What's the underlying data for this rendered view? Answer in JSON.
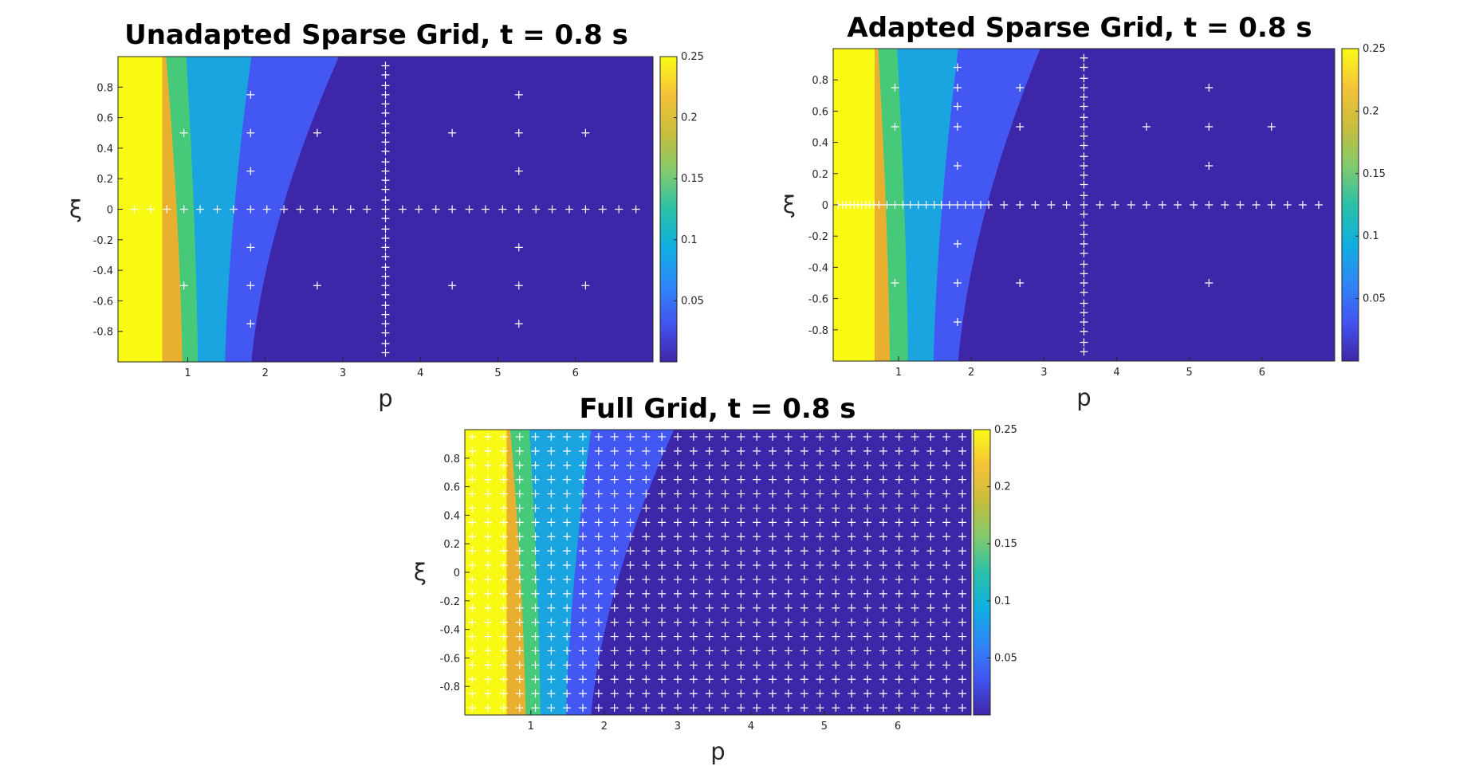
{
  "colors": {
    "contour_levels": [
      "#3e26a8",
      "#4358f2",
      "#1aa5e0",
      "#47c97a",
      "#e9b02f",
      "#f9fa14"
    ],
    "colorbar_stops": [
      "#3e26a8",
      "#4354f0",
      "#2e87f7",
      "#0fafe0",
      "#2ac0a8",
      "#82ca6c",
      "#c8bd3b",
      "#f6c23a",
      "#f9fb15"
    ],
    "marker": "#ffffff"
  },
  "chart_data": [
    {
      "type": "heatmap",
      "title": "Unadapted Sparse Grid, t = 0.8 s",
      "xlabel": "p",
      "ylabel": "ξ",
      "xlim": [
        0.1,
        7.0
      ],
      "ylim": [
        -1,
        1
      ],
      "xticks": [
        1,
        2,
        3,
        4,
        5,
        6
      ],
      "yticks": [
        -0.8,
        -0.6,
        -0.4,
        -0.2,
        0,
        0.2,
        0.4,
        0.6,
        0.8
      ],
      "colorbar": {
        "range": [
          0,
          0.25
        ],
        "ticks": [
          0.05,
          0.1,
          0.15,
          0.2,
          0.25
        ]
      },
      "contour_boundaries": [
        {
          "level": 0.25,
          "p": [
            0.42,
            0.42
          ]
        },
        {
          "level": 0.2,
          "p": [
            0.67,
            0.67
          ]
        },
        {
          "level": 0.15,
          "p": [
            0.93,
            0.72
          ]
        },
        {
          "level": 0.1,
          "p": [
            1.13,
            0.98
          ]
        },
        {
          "level": 0.05,
          "p": [
            1.48,
            1.82
          ]
        },
        {
          "level": 0.02,
          "p": [
            1.82,
            2.95
          ]
        }
      ],
      "grid_points": [
        [
          0.31,
          0
        ],
        [
          0.52,
          0
        ],
        [
          0.73,
          0
        ],
        [
          0.95,
          0
        ],
        [
          1.16,
          0
        ],
        [
          1.38,
          0
        ],
        [
          1.59,
          0
        ],
        [
          1.81,
          0
        ],
        [
          2.02,
          0
        ],
        [
          2.24,
          0
        ],
        [
          2.45,
          0
        ],
        [
          2.67,
          0
        ],
        [
          2.88,
          0
        ],
        [
          3.1,
          0
        ],
        [
          3.31,
          0
        ],
        [
          3.77,
          0
        ],
        [
          3.98,
          0
        ],
        [
          4.2,
          0
        ],
        [
          4.41,
          0
        ],
        [
          4.63,
          0
        ],
        [
          4.84,
          0
        ],
        [
          5.06,
          0
        ],
        [
          5.27,
          0
        ],
        [
          5.49,
          0
        ],
        [
          5.7,
          0
        ],
        [
          5.92,
          0
        ],
        [
          6.13,
          0
        ],
        [
          6.35,
          0
        ],
        [
          6.56,
          0
        ],
        [
          6.78,
          0
        ],
        [
          3.55,
          -0.94
        ],
        [
          3.55,
          -0.88
        ],
        [
          3.55,
          -0.81
        ],
        [
          3.55,
          -0.75
        ],
        [
          3.55,
          -0.69
        ],
        [
          3.55,
          -0.63
        ],
        [
          3.55,
          -0.56
        ],
        [
          3.55,
          -0.5
        ],
        [
          3.55,
          -0.44
        ],
        [
          3.55,
          -0.38
        ],
        [
          3.55,
          -0.31
        ],
        [
          3.55,
          -0.25
        ],
        [
          3.55,
          -0.19
        ],
        [
          3.55,
          -0.13
        ],
        [
          3.55,
          -0.06
        ],
        [
          3.55,
          0
        ],
        [
          3.55,
          0.06
        ],
        [
          3.55,
          0.13
        ],
        [
          3.55,
          0.19
        ],
        [
          3.55,
          0.25
        ],
        [
          3.55,
          0.31
        ],
        [
          3.55,
          0.38
        ],
        [
          3.55,
          0.44
        ],
        [
          3.55,
          0.5
        ],
        [
          3.55,
          0.56
        ],
        [
          3.55,
          0.63
        ],
        [
          3.55,
          0.69
        ],
        [
          3.55,
          0.75
        ],
        [
          3.55,
          0.81
        ],
        [
          3.55,
          0.88
        ],
        [
          3.55,
          0.94
        ],
        [
          0.95,
          0.5
        ],
        [
          0.95,
          -0.5
        ],
        [
          1.81,
          0.75
        ],
        [
          1.81,
          0.5
        ],
        [
          1.81,
          0.25
        ],
        [
          1.81,
          -0.25
        ],
        [
          1.81,
          -0.5
        ],
        [
          1.81,
          -0.75
        ],
        [
          2.67,
          0.5
        ],
        [
          2.67,
          -0.5
        ],
        [
          4.41,
          0.5
        ],
        [
          4.41,
          -0.5
        ],
        [
          5.27,
          0.75
        ],
        [
          5.27,
          0.5
        ],
        [
          5.27,
          0.25
        ],
        [
          5.27,
          -0.25
        ],
        [
          5.27,
          -0.5
        ],
        [
          5.27,
          -0.75
        ],
        [
          6.13,
          0.5
        ],
        [
          6.13,
          -0.5
        ]
      ]
    },
    {
      "type": "heatmap",
      "title": "Adapted Sparse Grid, t = 0.8 s",
      "xlabel": "p",
      "ylabel": "ξ",
      "xlim": [
        0.1,
        7.0
      ],
      "ylim": [
        -1,
        1
      ],
      "xticks": [
        1,
        2,
        3,
        4,
        5,
        6
      ],
      "yticks": [
        -0.8,
        -0.6,
        -0.4,
        -0.2,
        0,
        0.2,
        0.4,
        0.6,
        0.8
      ],
      "colorbar": {
        "range": [
          0,
          0.25
        ],
        "ticks": [
          0.05,
          0.1,
          0.15,
          0.2,
          0.25
        ]
      },
      "contour_boundaries": [
        {
          "level": 0.25,
          "p": [
            0.42,
            0.42
          ]
        },
        {
          "level": 0.2,
          "p": [
            0.67,
            0.67
          ]
        },
        {
          "level": 0.15,
          "p": [
            0.88,
            0.72
          ]
        },
        {
          "level": 0.1,
          "p": [
            1.13,
            0.98
          ]
        },
        {
          "level": 0.05,
          "p": [
            1.48,
            1.82
          ]
        },
        {
          "level": 0.02,
          "p": [
            1.82,
            2.95
          ]
        }
      ],
      "grid_points": [
        [
          0.17,
          0
        ],
        [
          0.23,
          0
        ],
        [
          0.28,
          0
        ],
        [
          0.33,
          0
        ],
        [
          0.39,
          0
        ],
        [
          0.44,
          0
        ],
        [
          0.49,
          0
        ],
        [
          0.55,
          0
        ],
        [
          0.6,
          0
        ],
        [
          0.66,
          0
        ],
        [
          0.73,
          0
        ],
        [
          0.84,
          0
        ],
        [
          0.95,
          0
        ],
        [
          1.06,
          0
        ],
        [
          1.16,
          0
        ],
        [
          1.27,
          0
        ],
        [
          1.38,
          0
        ],
        [
          1.49,
          0
        ],
        [
          1.59,
          0
        ],
        [
          1.7,
          0
        ],
        [
          1.81,
          0
        ],
        [
          1.92,
          0
        ],
        [
          2.02,
          0
        ],
        [
          2.13,
          0
        ],
        [
          2.24,
          0
        ],
        [
          2.45,
          0
        ],
        [
          2.67,
          0
        ],
        [
          2.88,
          0
        ],
        [
          3.1,
          0
        ],
        [
          3.31,
          0
        ],
        [
          3.77,
          0
        ],
        [
          3.98,
          0
        ],
        [
          4.2,
          0
        ],
        [
          4.41,
          0
        ],
        [
          4.63,
          0
        ],
        [
          4.84,
          0
        ],
        [
          5.06,
          0
        ],
        [
          5.27,
          0
        ],
        [
          5.49,
          0
        ],
        [
          5.7,
          0
        ],
        [
          5.92,
          0
        ],
        [
          6.13,
          0
        ],
        [
          6.35,
          0
        ],
        [
          6.56,
          0
        ],
        [
          6.78,
          0
        ],
        [
          3.55,
          -0.94
        ],
        [
          3.55,
          -0.88
        ],
        [
          3.55,
          -0.81
        ],
        [
          3.55,
          -0.75
        ],
        [
          3.55,
          -0.69
        ],
        [
          3.55,
          -0.63
        ],
        [
          3.55,
          -0.56
        ],
        [
          3.55,
          -0.5
        ],
        [
          3.55,
          -0.44
        ],
        [
          3.55,
          -0.38
        ],
        [
          3.55,
          -0.31
        ],
        [
          3.55,
          -0.25
        ],
        [
          3.55,
          -0.19
        ],
        [
          3.55,
          -0.13
        ],
        [
          3.55,
          -0.06
        ],
        [
          3.55,
          0
        ],
        [
          3.55,
          0.06
        ],
        [
          3.55,
          0.13
        ],
        [
          3.55,
          0.19
        ],
        [
          3.55,
          0.25
        ],
        [
          3.55,
          0.31
        ],
        [
          3.55,
          0.38
        ],
        [
          3.55,
          0.44
        ],
        [
          3.55,
          0.5
        ],
        [
          3.55,
          0.56
        ],
        [
          3.55,
          0.63
        ],
        [
          3.55,
          0.69
        ],
        [
          3.55,
          0.75
        ],
        [
          3.55,
          0.81
        ],
        [
          3.55,
          0.88
        ],
        [
          3.55,
          0.94
        ],
        [
          0.95,
          0.75
        ],
        [
          0.95,
          0.5
        ],
        [
          0.95,
          -0.5
        ],
        [
          1.81,
          0.88
        ],
        [
          1.81,
          0.75
        ],
        [
          1.81,
          0.63
        ],
        [
          1.81,
          0.5
        ],
        [
          1.81,
          0.25
        ],
        [
          1.81,
          -0.25
        ],
        [
          1.81,
          -0.5
        ],
        [
          1.81,
          -0.75
        ],
        [
          2.67,
          0.75
        ],
        [
          2.67,
          0.5
        ],
        [
          2.67,
          -0.5
        ],
        [
          4.41,
          0.5
        ],
        [
          5.27,
          0.75
        ],
        [
          5.27,
          0.5
        ],
        [
          5.27,
          0.25
        ],
        [
          5.27,
          -0.5
        ],
        [
          6.13,
          0.5
        ]
      ]
    },
    {
      "type": "heatmap",
      "title": "Full Grid, t = 0.8 s",
      "xlabel": "p",
      "ylabel": "ξ",
      "xlim": [
        0.1,
        7.0
      ],
      "ylim": [
        -1,
        1
      ],
      "xticks": [
        1,
        2,
        3,
        4,
        5,
        6
      ],
      "yticks": [
        -0.8,
        -0.6,
        -0.4,
        -0.2,
        0,
        0.2,
        0.4,
        0.6,
        0.8
      ],
      "colorbar": {
        "range": [
          0,
          0.25
        ],
        "ticks": [
          0.05,
          0.1,
          0.15,
          0.2,
          0.25
        ]
      },
      "contour_boundaries": [
        {
          "level": 0.25,
          "p": [
            0.42,
            0.42
          ]
        },
        {
          "level": 0.2,
          "p": [
            0.67,
            0.67
          ]
        },
        {
          "level": 0.15,
          "p": [
            0.93,
            0.72
          ]
        },
        {
          "level": 0.1,
          "p": [
            1.13,
            0.98
          ]
        },
        {
          "level": 0.05,
          "p": [
            1.48,
            1.82
          ]
        },
        {
          "level": 0.02,
          "p": [
            1.82,
            2.95
          ]
        }
      ],
      "full_grid": {
        "p_start": 0.2,
        "p_step": 0.2155,
        "p_count": 32,
        "xi_start": -0.95,
        "xi_step": 0.1,
        "xi_count": 20
      }
    }
  ]
}
